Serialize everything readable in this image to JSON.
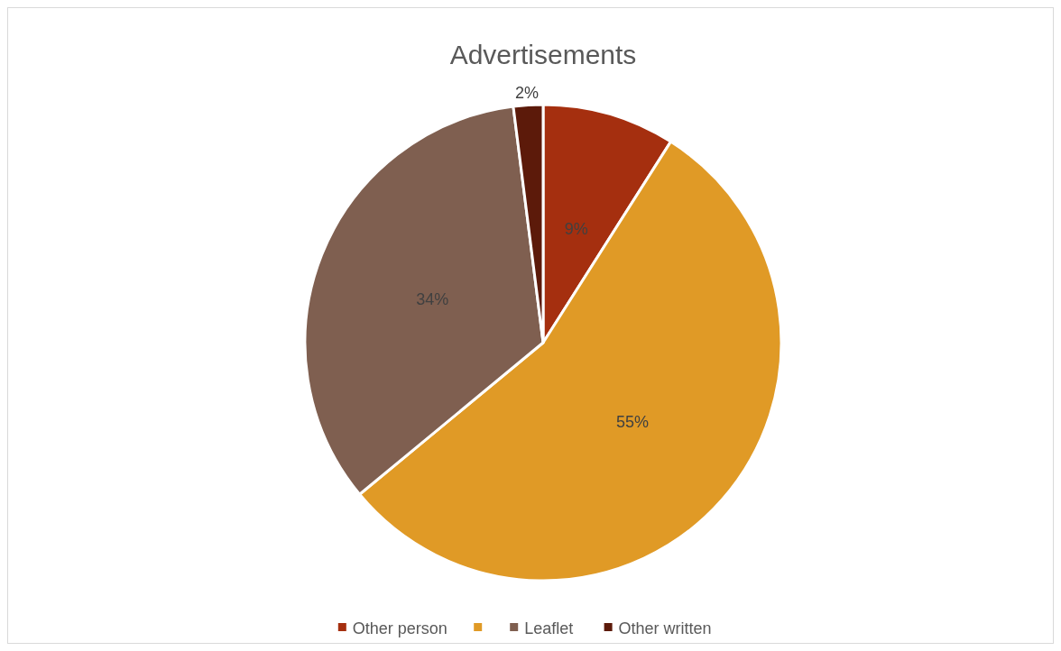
{
  "chart_data": {
    "type": "pie",
    "title": "Advertisements",
    "categories": [
      "Other person",
      null,
      "Leaflet",
      "Other written"
    ],
    "values": [
      9,
      55,
      34,
      2
    ],
    "colors": [
      "#a52f0f",
      "#e09a26",
      "#7f5f50",
      "#5c1a0a"
    ],
    "value_labels": [
      "9%",
      "55%",
      "34%",
      "2%"
    ],
    "legend": "bottom"
  }
}
